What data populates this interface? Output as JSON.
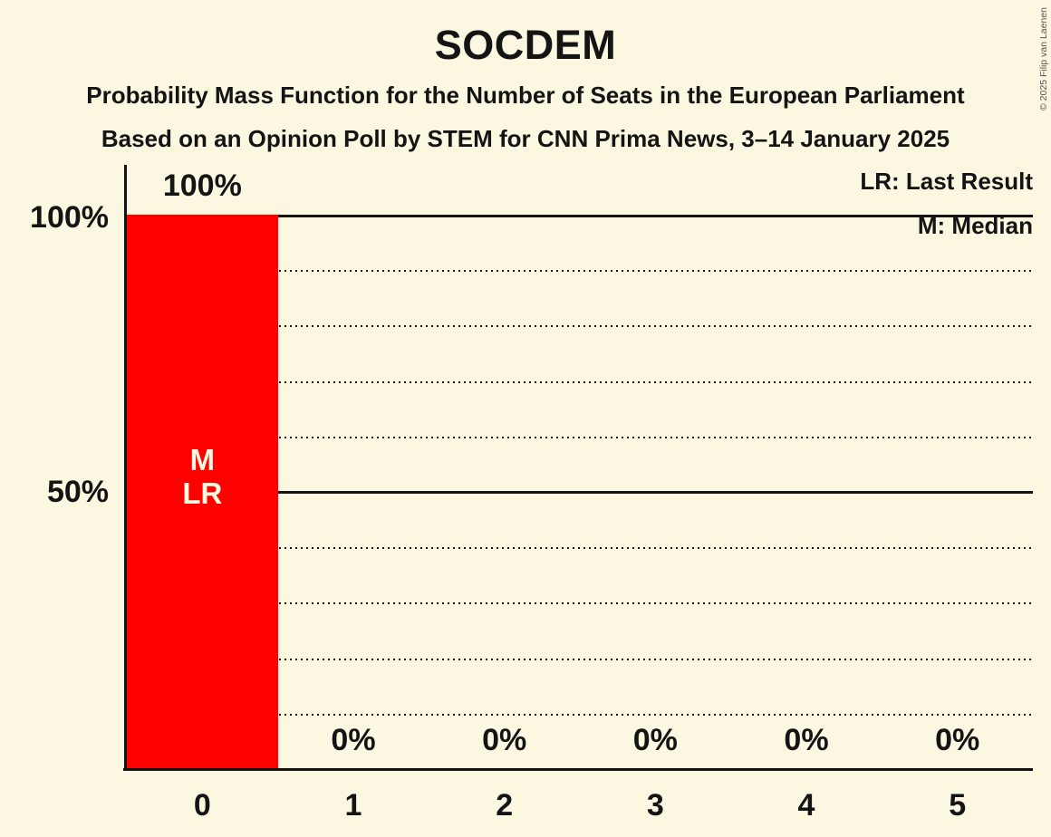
{
  "title": "SOCDEM",
  "subtitle1": "Probability Mass Function for the Number of Seats in the European Parliament",
  "subtitle2": "Based on an Opinion Poll by STEM for CNN Prima News, 3–14 January 2025",
  "copyright": "© 2025 Filip van Laenen",
  "legend": {
    "lr": "LR: Last Result",
    "m": "M: Median"
  },
  "y_axis": {
    "labels": [
      "100%",
      "50%"
    ]
  },
  "colors": {
    "background": "#FCF7E0",
    "bar": "#FF0000",
    "text": "#141414",
    "bar_annotation_text": "#FCF7E0"
  },
  "chart_data": {
    "type": "bar",
    "title": "SOCDEM",
    "categories": [
      "0",
      "1",
      "2",
      "3",
      "4",
      "5"
    ],
    "values": [
      100,
      0,
      0,
      0,
      0,
      0
    ],
    "value_labels": [
      "100%",
      "0%",
      "0%",
      "0%",
      "0%",
      "0%"
    ],
    "xlabel": "",
    "ylabel": "",
    "ylim": [
      0,
      100
    ],
    "y_tick_labels": [
      "100%",
      "50%"
    ],
    "solid_gridlines_pct": [
      100,
      50
    ],
    "dotted_gridlines_pct": [
      90,
      80,
      70,
      60,
      40,
      30,
      20,
      10
    ],
    "legend_position": "top-right",
    "median_category": "0",
    "last_result_category": "0",
    "annotated_category_index": 0,
    "annotation_lines": [
      "M",
      "LR"
    ]
  }
}
